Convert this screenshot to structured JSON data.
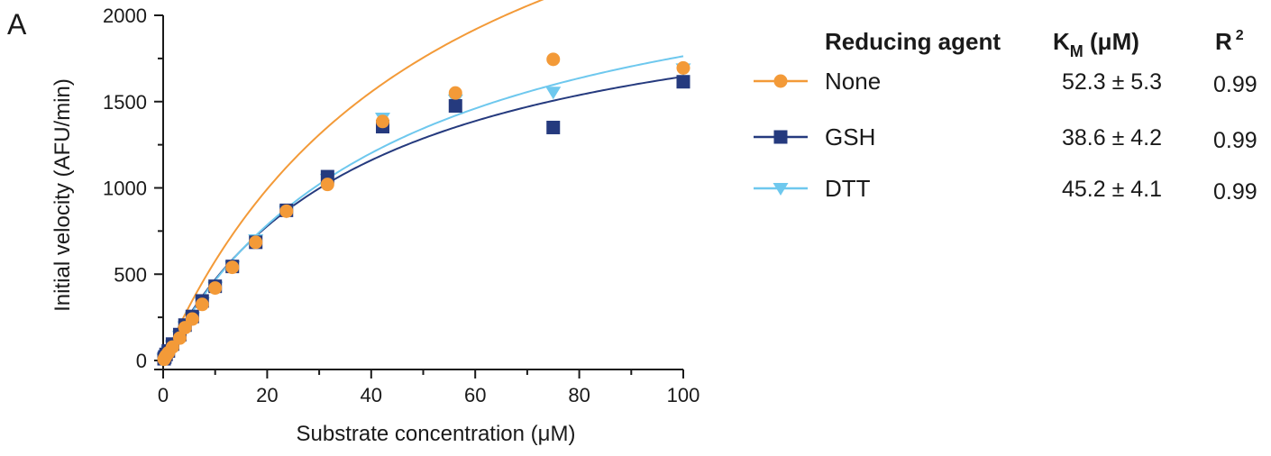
{
  "panel_label": "A",
  "chart_data": {
    "type": "scatter",
    "xlabel": "Substrate concentration (μM)",
    "ylabel": "Initial velocity (AFU/min)",
    "xlim": [
      0,
      100
    ],
    "ylim": [
      0,
      2000
    ],
    "xticks": [
      0,
      20,
      40,
      60,
      80,
      100
    ],
    "yticks": [
      0,
      500,
      1000,
      1500,
      2000
    ],
    "legend": {
      "placement": "right",
      "header": {
        "name": "Reducing agent",
        "km": "K",
        "km_sub": "M",
        "km_unit": " (μM)",
        "r2": "R",
        "r2_sup": "2"
      }
    },
    "series": [
      {
        "name": "None",
        "marker": "circle",
        "color": "#F39A38",
        "km_text": "52.3 ± 5.3",
        "r2_text": "0.99",
        "km": 52.3,
        "vmax": 3590,
        "x": [
          0.18,
          0.32,
          0.56,
          1.0,
          1.8,
          3.2,
          4.2,
          5.6,
          7.5,
          10,
          13.3,
          17.8,
          23.7,
          31.6,
          42.2,
          56.2,
          75,
          100
        ],
        "y": [
          7,
          15,
          28,
          45,
          78,
          130,
          190,
          240,
          325,
          420,
          540,
          685,
          865,
          1020,
          1385,
          1550,
          1745,
          1695
        ]
      },
      {
        "name": "GSH",
        "marker": "square",
        "color": "#253A7E",
        "km_text": "38.6 ± 4.2",
        "r2_text": "0.99",
        "km": 38.6,
        "vmax": 2280,
        "x": [
          0.18,
          0.32,
          0.56,
          1.0,
          1.8,
          3.2,
          4.2,
          5.6,
          7.5,
          10,
          13.3,
          17.8,
          23.7,
          31.6,
          42.2,
          56.2,
          75,
          100
        ],
        "y": [
          10,
          20,
          35,
          55,
          95,
          150,
          205,
          255,
          345,
          430,
          545,
          685,
          870,
          1065,
          1355,
          1475,
          1350,
          1615
        ]
      },
      {
        "name": "DTT",
        "marker": "triangle-down",
        "color": "#6EC8EE",
        "km_text": "45.2 ± 4.1",
        "r2_text": "0.99",
        "km": 45.2,
        "vmax": 2560,
        "x": [
          0.18,
          0.32,
          0.56,
          1.0,
          1.8,
          3.2,
          4.2,
          5.6,
          7.5,
          10,
          13.3,
          17.8,
          23.7,
          31.6,
          42.2,
          56.2,
          75,
          100
        ],
        "y": [
          8,
          18,
          30,
          50,
          85,
          140,
          195,
          248,
          335,
          425,
          545,
          700,
          865,
          1050,
          1405,
          1510,
          1555,
          1690
        ]
      }
    ]
  }
}
